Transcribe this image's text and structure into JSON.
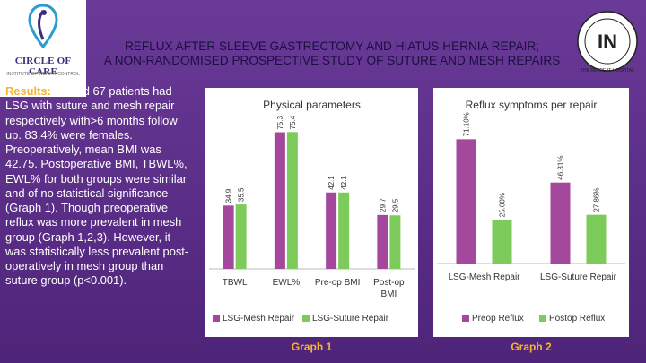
{
  "logo_left": {
    "name": "CIRCLE OF CARE",
    "subtitle": "INSTITUTE OF WEIGHT CONTROL"
  },
  "logo_right": {
    "seal_text": "THE RETREAT HOSPITAL",
    "monogram": "IN"
  },
  "title": {
    "line1": "REFLUX AFTER SLEEVE GASTRECTOMY AND HIATUS HERNIA REPAIR;",
    "line2": "A NON-RANDOMISED PROSPECTIVE STUDY OF SUTURE AND MESH REPAIRS"
  },
  "results": {
    "label": "Results:",
    "text": " 71 and 67 patients had LSG with suture and mesh repair respectively with>6 months follow up. 83.4% were females. Preoperatively, mean BMI was 42.75. Postoperative BMI, TBWL%, EWL% for both groups were similar and of no statistical significance (Graph 1). Though preoperative reflux was more prevalent in mesh group (Graph 1,2,3). However, it was statistically less prevalent post-operatively in mesh group than suture group (p<0.001)."
  },
  "colors": {
    "mesh": "#a3489c",
    "suture": "#7dcb5a"
  },
  "chart_data": [
    {
      "type": "bar",
      "title": "Physical parameters",
      "caption": "Graph 1",
      "categories": [
        "TBWL",
        "EWL%",
        "Pre-op BMI",
        "Post-op BMI"
      ],
      "series": [
        {
          "name": "LSG-Mesh Repair",
          "values": [
            34.9,
            75.3,
            42.1,
            29.7
          ],
          "labels": [
            "34.9",
            "75.3",
            "42.1",
            "29.7"
          ]
        },
        {
          "name": "LSG-Suture Repair",
          "values": [
            35.5,
            75.4,
            42.1,
            29.5
          ],
          "labels": [
            "35.5",
            "75.4",
            "42.1",
            "29.5"
          ]
        }
      ],
      "ylim": [
        0,
        80
      ],
      "legend": "bottom"
    },
    {
      "type": "bar",
      "title": "Reflux symptoms per repair",
      "caption": "Graph 2",
      "categories": [
        "LSG-Mesh Repair",
        "LSG-Suture Repair"
      ],
      "series": [
        {
          "name": "Preop Reflux",
          "values": [
            71.1,
            46.31
          ],
          "labels": [
            "71.10%",
            "46.31%"
          ]
        },
        {
          "name": "Postop Reflux",
          "values": [
            25.0,
            27.86
          ],
          "labels": [
            "25.00%",
            "27.86%"
          ]
        }
      ],
      "ylim": [
        0,
        80
      ],
      "legend": "bottom"
    }
  ]
}
